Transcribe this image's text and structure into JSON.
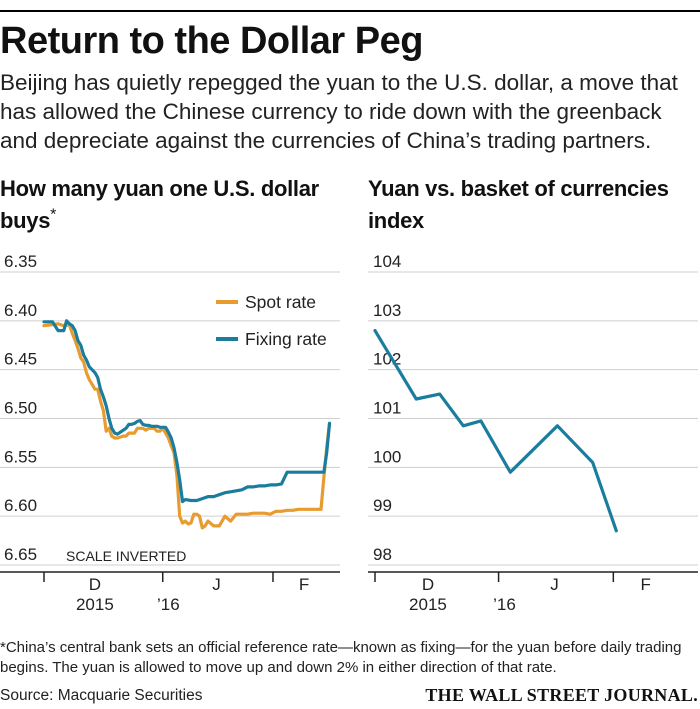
{
  "title": "Return to the Dollar Peg",
  "subtitle": "Beijing has quietly repegged the yuan to the U.S. dollar, a move that has allowed the Chinese currency to ride down with the greenback and depreciate against the currencies of China’s trading partners.",
  "footnote": "*China’s central bank sets an official reference rate—known as fixing—for the yuan before daily trading begins. The yuan is allowed to move up and down 2% in either direction of that rate.",
  "source": "Source: Macquarie Securities",
  "brand": "THE WALL STREET JOURNAL.",
  "colors": {
    "spot": "#e89b2f",
    "fixing": "#1b7d9e",
    "grid": "#cfcfcf",
    "axis": "#222222"
  },
  "chart_data": [
    {
      "type": "line",
      "title": "How many yuan one U.S. dollar buys",
      "title_marker": "*",
      "ylim": [
        6.65,
        6.35
      ],
      "y_inverted": true,
      "y_ticks": [
        6.35,
        6.4,
        6.45,
        6.5,
        6.55,
        6.6,
        6.65
      ],
      "y_tick_labels": [
        "6.35",
        "6.40",
        "6.45",
        "6.50",
        "6.55",
        "6.60",
        "6.65"
      ],
      "x_range": [
        0,
        104
      ],
      "x_ticks": [
        0,
        42,
        81
      ],
      "x_labels": [
        {
          "text": "D",
          "x": 18,
          "row": 1
        },
        {
          "text": "2015",
          "x": 18,
          "row": 2
        },
        {
          "text": "’16",
          "x": 44,
          "row": 2
        },
        {
          "text": "J",
          "x": 61,
          "row": 1
        },
        {
          "text": "F",
          "x": 92,
          "row": 1
        }
      ],
      "annotation": "SCALE INVERTED",
      "legend": [
        "Spot rate",
        "Fixing rate"
      ],
      "series": [
        {
          "name": "Spot rate",
          "color_key": "spot",
          "x": [
            0,
            3,
            5,
            7,
            9,
            10,
            11,
            12,
            13,
            14,
            15,
            16,
            17,
            18,
            19,
            20,
            21,
            22,
            23,
            24,
            25,
            26,
            27,
            28,
            29,
            30,
            31,
            32,
            33,
            34,
            35,
            36,
            37,
            38,
            39,
            40,
            41,
            42,
            43,
            44,
            45,
            46,
            47,
            48,
            49,
            50,
            51,
            52,
            53,
            54,
            55,
            56,
            57,
            58,
            60,
            62,
            64,
            66,
            68,
            70,
            72,
            74,
            76,
            78,
            80,
            82,
            84,
            86,
            88,
            90,
            92,
            94,
            96,
            98,
            99,
            100,
            101
          ],
          "values": [
            6.405,
            6.404,
            6.403,
            6.405,
            6.404,
            6.413,
            6.42,
            6.428,
            6.438,
            6.442,
            6.453,
            6.46,
            6.465,
            6.47,
            6.47,
            6.482,
            6.492,
            6.513,
            6.51,
            6.518,
            6.52,
            6.52,
            6.519,
            6.518,
            6.518,
            6.515,
            6.515,
            6.515,
            6.51,
            6.51,
            6.51,
            6.512,
            6.51,
            6.51,
            6.51,
            6.513,
            6.513,
            6.51,
            6.515,
            6.52,
            6.528,
            6.535,
            6.558,
            6.6,
            6.607,
            6.605,
            6.608,
            6.607,
            6.598,
            6.598,
            6.6,
            6.612,
            6.61,
            6.605,
            6.61,
            6.61,
            6.6,
            6.605,
            6.598,
            6.598,
            6.598,
            6.597,
            6.597,
            6.597,
            6.598,
            6.595,
            6.595,
            6.594,
            6.594,
            6.593,
            6.593,
            6.593,
            6.593,
            6.593,
            6.56,
            6.53,
            6.505
          ]
        },
        {
          "name": "Fixing rate",
          "color_key": "fixing",
          "x": [
            0,
            3,
            5,
            7,
            8,
            9,
            10,
            11,
            12,
            13,
            14,
            15,
            16,
            17,
            18,
            19,
            20,
            21,
            22,
            23,
            24,
            25,
            26,
            27,
            28,
            29,
            30,
            31,
            32,
            33,
            34,
            35,
            36,
            37,
            38,
            39,
            40,
            41,
            42,
            43,
            44,
            45,
            46,
            47,
            48,
            49,
            50,
            52,
            54,
            56,
            58,
            60,
            62,
            64,
            66,
            68,
            70,
            72,
            74,
            76,
            78,
            80,
            82,
            84,
            86,
            88,
            90,
            92,
            94,
            96,
            98,
            99,
            100,
            101
          ],
          "values": [
            6.401,
            6.401,
            6.41,
            6.41,
            6.4,
            6.403,
            6.405,
            6.41,
            6.42,
            6.425,
            6.435,
            6.44,
            6.447,
            6.45,
            6.453,
            6.458,
            6.47,
            6.478,
            6.487,
            6.5,
            6.51,
            6.515,
            6.516,
            6.514,
            6.512,
            6.51,
            6.506,
            6.506,
            6.505,
            6.503,
            6.502,
            6.506,
            6.507,
            6.507,
            6.508,
            6.508,
            6.508,
            6.509,
            6.509,
            6.509,
            6.514,
            6.52,
            6.53,
            6.545,
            6.563,
            6.585,
            6.583,
            6.584,
            6.584,
            6.582,
            6.58,
            6.58,
            6.578,
            6.576,
            6.575,
            6.574,
            6.573,
            6.57,
            6.57,
            6.569,
            6.569,
            6.568,
            6.568,
            6.567,
            6.555,
            6.555,
            6.555,
            6.555,
            6.555,
            6.555,
            6.555,
            6.555,
            6.535,
            6.505
          ]
        }
      ]
    },
    {
      "type": "line",
      "title": "Yuan vs. basket of currencies index",
      "ylim": [
        98,
        104
      ],
      "y_ticks": [
        98,
        99,
        100,
        101,
        102,
        103,
        104
      ],
      "y_tick_labels": [
        "98",
        "99",
        "100",
        "101",
        "102",
        "103",
        "104"
      ],
      "x_range": [
        0,
        104
      ],
      "x_ticks": [
        0,
        42,
        81
      ],
      "x_labels": [
        {
          "text": "D",
          "x": 18,
          "row": 1
        },
        {
          "text": "2015",
          "x": 18,
          "row": 2
        },
        {
          "text": "’16",
          "x": 44,
          "row": 2
        },
        {
          "text": "J",
          "x": 61,
          "row": 1
        },
        {
          "text": "F",
          "x": 92,
          "row": 1
        }
      ],
      "series": [
        {
          "name": "Index",
          "color_key": "fixing",
          "x": [
            0,
            14,
            22,
            30,
            36,
            46,
            62,
            74,
            82
          ],
          "values": [
            102.8,
            101.4,
            101.5,
            100.85,
            100.95,
            99.9,
            100.85,
            100.1,
            98.7
          ]
        }
      ]
    }
  ]
}
